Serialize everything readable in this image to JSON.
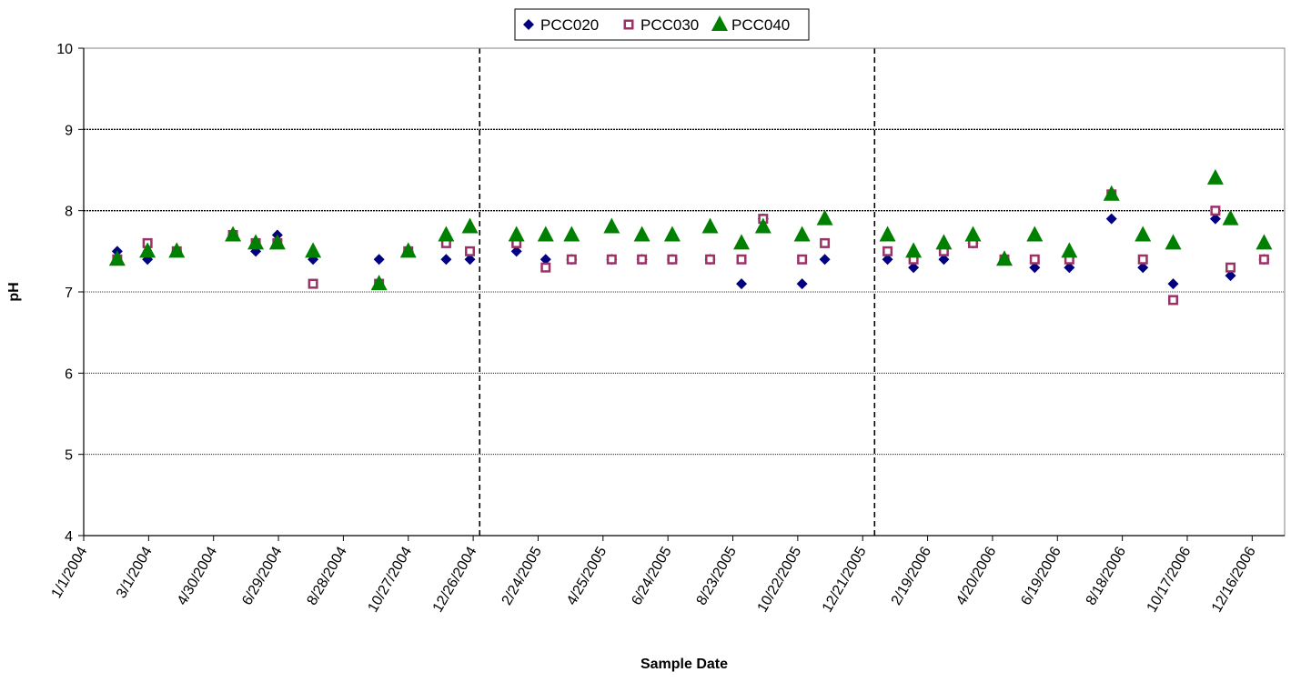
{
  "chart_data": {
    "type": "scatter",
    "title": "",
    "xlabel": "Sample Date",
    "ylabel": "pH",
    "ylim": [
      4,
      10
    ],
    "yticks": [
      4,
      5,
      6,
      7,
      8,
      9,
      10
    ],
    "ygrid": [
      5,
      6,
      7,
      8,
      9
    ],
    "ygrid_emphasis": [
      8,
      9
    ],
    "grid": true,
    "xlim": [
      "2004-01-01",
      "2007-01-15"
    ],
    "xtick_labels": [
      "1/1/2004",
      "3/1/2004",
      "4/30/2004",
      "6/29/2004",
      "8/28/2004",
      "10/27/2004",
      "12/26/2004",
      "2/24/2005",
      "4/25/2005",
      "6/24/2005",
      "8/23/2005",
      "10/22/2005",
      "12/21/2005",
      "2/19/2006",
      "4/20/2006",
      "6/19/2006",
      "8/18/2006",
      "10/17/2006",
      "12/16/2006"
    ],
    "vertical_dividers": [
      "2005-01-01",
      "2006-01-01"
    ],
    "legend_position": "top-center",
    "series": [
      {
        "name": "PCC020",
        "marker": "diamond",
        "color": "#000080",
        "points": [
          [
            "2004-02-01",
            7.5
          ],
          [
            "2004-02-29",
            7.4
          ],
          [
            "2004-03-27",
            7.5
          ],
          [
            "2004-05-18",
            7.7
          ],
          [
            "2004-06-08",
            7.5
          ],
          [
            "2004-06-28",
            7.7
          ],
          [
            "2004-07-31",
            7.4
          ],
          [
            "2004-09-30",
            7.4
          ],
          [
            "2004-10-27",
            7.5
          ],
          [
            "2004-12-01",
            7.4
          ],
          [
            "2004-12-23",
            7.4
          ],
          [
            "2005-02-04",
            7.5
          ],
          [
            "2005-03-03",
            7.4
          ],
          [
            "2005-03-27",
            7.4
          ],
          [
            "2005-05-03",
            7.4
          ],
          [
            "2005-05-31",
            7.4
          ],
          [
            "2005-06-28",
            7.4
          ],
          [
            "2005-08-02",
            7.4
          ],
          [
            "2005-08-31",
            7.1
          ],
          [
            "2005-09-20",
            7.9
          ],
          [
            "2005-10-26",
            7.1
          ],
          [
            "2005-11-16",
            7.4
          ],
          [
            "2006-01-13",
            7.4
          ],
          [
            "2006-02-06",
            7.3
          ],
          [
            "2006-03-06",
            7.4
          ],
          [
            "2006-04-02",
            7.6
          ],
          [
            "2006-05-01",
            7.4
          ],
          [
            "2006-05-29",
            7.3
          ],
          [
            "2006-06-30",
            7.3
          ],
          [
            "2006-08-08",
            7.9
          ],
          [
            "2006-09-06",
            7.3
          ],
          [
            "2006-10-04",
            7.1
          ],
          [
            "2006-11-12",
            7.9
          ],
          [
            "2006-11-26",
            7.2
          ],
          [
            "2006-12-27",
            7.4
          ]
        ]
      },
      {
        "name": "PCC030",
        "marker": "square",
        "color": "#993366",
        "points": [
          [
            "2004-02-01",
            7.4
          ],
          [
            "2004-02-29",
            7.6
          ],
          [
            "2004-03-27",
            7.5
          ],
          [
            "2004-05-18",
            7.7
          ],
          [
            "2004-06-08",
            7.6
          ],
          [
            "2004-06-28",
            7.6
          ],
          [
            "2004-07-31",
            7.1
          ],
          [
            "2004-09-30",
            7.1
          ],
          [
            "2004-10-27",
            7.5
          ],
          [
            "2004-12-01",
            7.6
          ],
          [
            "2004-12-23",
            7.5
          ],
          [
            "2005-02-04",
            7.6
          ],
          [
            "2005-03-03",
            7.3
          ],
          [
            "2005-03-27",
            7.4
          ],
          [
            "2005-05-03",
            7.4
          ],
          [
            "2005-05-31",
            7.4
          ],
          [
            "2005-06-28",
            7.4
          ],
          [
            "2005-08-02",
            7.4
          ],
          [
            "2005-08-31",
            7.4
          ],
          [
            "2005-09-20",
            7.9
          ],
          [
            "2005-10-26",
            7.4
          ],
          [
            "2005-11-16",
            7.6
          ],
          [
            "2006-01-13",
            7.5
          ],
          [
            "2006-02-06",
            7.4
          ],
          [
            "2006-03-06",
            7.5
          ],
          [
            "2006-04-02",
            7.6
          ],
          [
            "2006-05-01",
            7.4
          ],
          [
            "2006-05-29",
            7.4
          ],
          [
            "2006-06-30",
            7.4
          ],
          [
            "2006-08-08",
            8.2
          ],
          [
            "2006-09-06",
            7.4
          ],
          [
            "2006-10-04",
            6.9
          ],
          [
            "2006-11-12",
            8.0
          ],
          [
            "2006-11-26",
            7.3
          ],
          [
            "2006-12-27",
            7.4
          ]
        ]
      },
      {
        "name": "PCC040",
        "marker": "triangle",
        "color": "#008000",
        "points": [
          [
            "2004-02-01",
            7.4
          ],
          [
            "2004-02-29",
            7.5
          ],
          [
            "2004-03-27",
            7.5
          ],
          [
            "2004-05-18",
            7.7
          ],
          [
            "2004-06-08",
            7.6
          ],
          [
            "2004-06-28",
            7.6
          ],
          [
            "2004-07-31",
            7.5
          ],
          [
            "2004-09-30",
            7.1
          ],
          [
            "2004-10-27",
            7.5
          ],
          [
            "2004-12-01",
            7.7
          ],
          [
            "2004-12-23",
            7.8
          ],
          [
            "2005-02-04",
            7.7
          ],
          [
            "2005-03-03",
            7.7
          ],
          [
            "2005-03-27",
            7.7
          ],
          [
            "2005-05-03",
            7.8
          ],
          [
            "2005-05-31",
            7.7
          ],
          [
            "2005-06-28",
            7.7
          ],
          [
            "2005-08-02",
            7.8
          ],
          [
            "2005-08-31",
            7.6
          ],
          [
            "2005-09-20",
            7.8
          ],
          [
            "2005-10-26",
            7.7
          ],
          [
            "2005-11-16",
            7.9
          ],
          [
            "2006-01-13",
            7.7
          ],
          [
            "2006-02-06",
            7.5
          ],
          [
            "2006-03-06",
            7.6
          ],
          [
            "2006-04-02",
            7.7
          ],
          [
            "2006-05-01",
            7.4
          ],
          [
            "2006-05-29",
            7.7
          ],
          [
            "2006-06-30",
            7.5
          ],
          [
            "2006-08-08",
            8.2
          ],
          [
            "2006-09-06",
            7.7
          ],
          [
            "2006-10-04",
            7.6
          ],
          [
            "2006-11-12",
            8.4
          ],
          [
            "2006-11-26",
            7.9
          ],
          [
            "2006-12-27",
            7.6
          ]
        ]
      }
    ]
  }
}
